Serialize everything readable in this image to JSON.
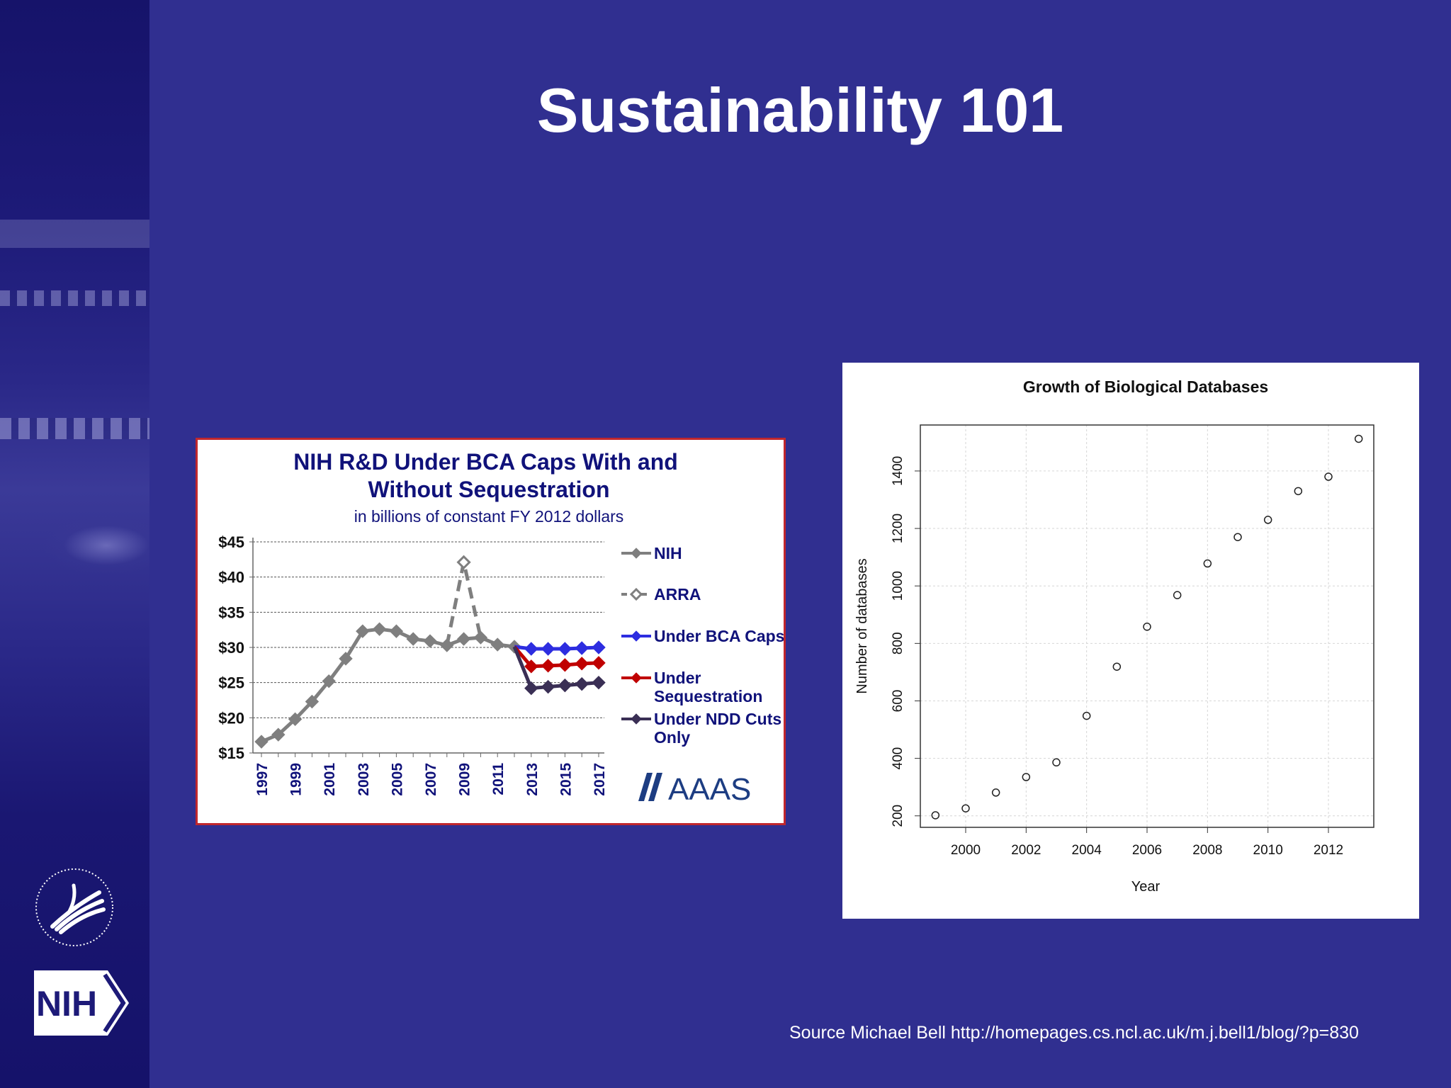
{
  "slide": {
    "title": "Sustainability 101",
    "source": "Source Michael Bell http://homepages.cs.ncl.ac.uk/m.j.bell1/blog/?p=830"
  },
  "logos": {
    "nih_text": "NIH",
    "hhs_text": "DEPARTMENT OF HEALTH & HUMAN SERVICES · USA"
  },
  "chart_data": [
    {
      "type": "line",
      "title": "NIH R&D Under BCA Caps With and Without Sequestration",
      "subtitle": "in billions of constant FY 2012 dollars",
      "xlabel": "",
      "ylabel": "",
      "x": [
        1997,
        1998,
        1999,
        2000,
        2001,
        2002,
        2003,
        2004,
        2005,
        2006,
        2007,
        2008,
        2009,
        2010,
        2011,
        2012,
        2013,
        2014,
        2015,
        2016,
        2017
      ],
      "x_tick_labels": [
        "1997",
        "1999",
        "2001",
        "2003",
        "2005",
        "2007",
        "2009",
        "2011",
        "2013",
        "2015",
        "2017"
      ],
      "y_ticks": [
        15,
        20,
        25,
        30,
        35,
        40,
        45
      ],
      "y_tick_labels": [
        "$15",
        "$20",
        "$25",
        "$30",
        "$35",
        "$40",
        "$45"
      ],
      "ylim": [
        15,
        45
      ],
      "grid": true,
      "legend": "right",
      "logo": "AAAS",
      "series": [
        {
          "name": "NIH",
          "color": "#7f7f7f",
          "style": "solid",
          "marker": "diamond",
          "x": [
            1997,
            1998,
            1999,
            2000,
            2001,
            2002,
            2003,
            2004,
            2005,
            2006,
            2007,
            2008,
            2009,
            2010,
            2011,
            2012
          ],
          "y": [
            16.6,
            17.6,
            19.8,
            22.3,
            25.2,
            28.4,
            32.3,
            32.6,
            32.3,
            31.2,
            30.9,
            30.3,
            31.2,
            31.4,
            30.4,
            30.1
          ]
        },
        {
          "name": "ARRA",
          "color": "#7f7f7f",
          "style": "dashed",
          "marker": "diamond-open",
          "x": [
            2008,
            2009,
            2010
          ],
          "y": [
            30.3,
            42.1,
            31.4
          ]
        },
        {
          "name": "Under BCA Caps",
          "color": "#2d2de0",
          "style": "solid",
          "marker": "diamond",
          "x": [
            2012,
            2013,
            2014,
            2015,
            2016,
            2017
          ],
          "y": [
            30.1,
            29.8,
            29.8,
            29.8,
            29.9,
            30.0
          ]
        },
        {
          "name": "Under Sequestration",
          "color": "#c00000",
          "style": "solid",
          "marker": "diamond",
          "x": [
            2012,
            2013,
            2014,
            2015,
            2016,
            2017
          ],
          "y": [
            30.1,
            27.3,
            27.4,
            27.5,
            27.7,
            27.8
          ]
        },
        {
          "name": "Under NDD Cuts Only",
          "color": "#3a2f55",
          "style": "solid",
          "marker": "diamond",
          "x": [
            2012,
            2013,
            2014,
            2015,
            2016,
            2017
          ],
          "y": [
            30.1,
            24.2,
            24.4,
            24.6,
            24.8,
            25.0
          ]
        }
      ]
    },
    {
      "type": "scatter",
      "title": "Growth of Biological Databases",
      "xlabel": "Year",
      "ylabel": "Number of databases",
      "x_ticks": [
        2000,
        2002,
        2004,
        2006,
        2008,
        2010,
        2012
      ],
      "y_ticks": [
        200,
        400,
        600,
        800,
        1000,
        1200,
        1400
      ],
      "xlim": [
        1998.5,
        2013.5
      ],
      "ylim": [
        160,
        1560
      ],
      "grid": true,
      "marker": "open-circle",
      "x": [
        1999,
        2000,
        2001,
        2002,
        2003,
        2004,
        2005,
        2006,
        2007,
        2008,
        2009,
        2010,
        2011,
        2012,
        2013
      ],
      "y": [
        202,
        226,
        281,
        335,
        386,
        548,
        719,
        858,
        968,
        1078,
        1170,
        1230,
        1330,
        1380,
        1512
      ]
    }
  ]
}
